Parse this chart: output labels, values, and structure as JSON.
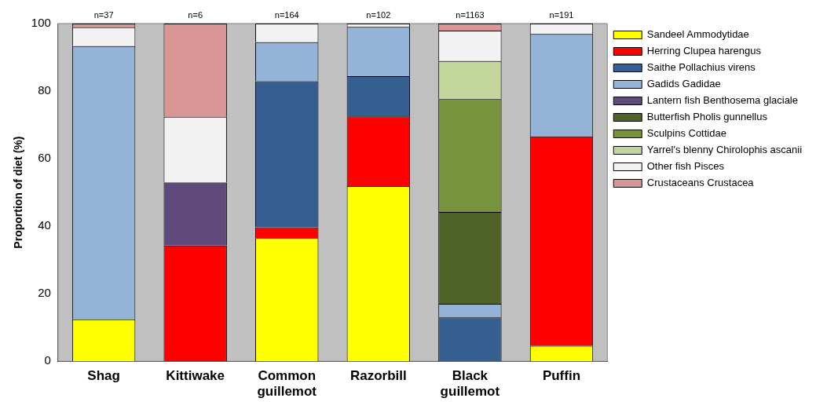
{
  "chart_data": {
    "type": "bar",
    "stacked": true,
    "ylabel": "Proportion of diet (%)",
    "categories": [
      "Shag",
      "Kittiwake",
      "Common guillemot",
      "Razorbill",
      "Black guillemot",
      "Puffin"
    ],
    "series": [
      {
        "name": "Sandeel Ammodytidae",
        "color": "#ffff00",
        "values": [
          12.4,
          0,
          36.5,
          51.9,
          0,
          4.6
        ]
      },
      {
        "name": "Herring Clupea harengus",
        "color": "#ff0000",
        "values": [
          0,
          34.3,
          3.2,
          20.6,
          0,
          62.0
        ]
      },
      {
        "name": "Saithe Pollachius virens",
        "color": "#365f91",
        "values": [
          0,
          0,
          43.2,
          11.9,
          13.0,
          0
        ]
      },
      {
        "name": "Gadids Gadidae",
        "color": "#95b3d7",
        "values": [
          80.9,
          0,
          11.6,
          14.6,
          4.0,
          30.3
        ]
      },
      {
        "name": "Lantern fish Benthosema glaciale",
        "color": "#604a7b",
        "values": [
          0,
          18.6,
          0,
          0,
          0,
          0
        ]
      },
      {
        "name": "Butterfish Pholis gunnellus",
        "color": "#4f6228",
        "values": [
          0,
          0,
          0,
          0,
          27.2,
          0
        ]
      },
      {
        "name": "Sculpins Cottidae",
        "color": "#77933c",
        "values": [
          0,
          0,
          0,
          0,
          33.4,
          0
        ]
      },
      {
        "name": "Yarrel's blenny Chirolophis ascanii",
        "color": "#c3d69b",
        "values": [
          0,
          0,
          0,
          0,
          11.3,
          0
        ]
      },
      {
        "name": "Other fish Pisces",
        "color": "#f2f2f2",
        "values": [
          5.6,
          19.5,
          5.5,
          1.0,
          9.0,
          3.1
        ]
      },
      {
        "name": "Crustaceans Crustacea",
        "color": "#d99694",
        "values": [
          1.1,
          27.6,
          0,
          0,
          2.1,
          0
        ]
      }
    ],
    "ylim": [
      0,
      100
    ],
    "yticks": [
      0,
      20,
      40,
      60,
      80,
      100
    ],
    "grid": false,
    "legend": "right",
    "annotations": [
      {
        "text": "n=37",
        "x": "Shag",
        "y": 100
      },
      {
        "text": "n=6",
        "x": "Kittiwake",
        "y": 100
      },
      {
        "text": "n=164",
        "x": "Common guillemot",
        "y": 100
      },
      {
        "text": "n=102",
        "x": "Razorbill",
        "y": 100
      },
      {
        "text": "n=1163",
        "x": "Black guillemot",
        "y": 100
      },
      {
        "text": "n=191",
        "x": "Puffin",
        "y": 100
      }
    ]
  }
}
